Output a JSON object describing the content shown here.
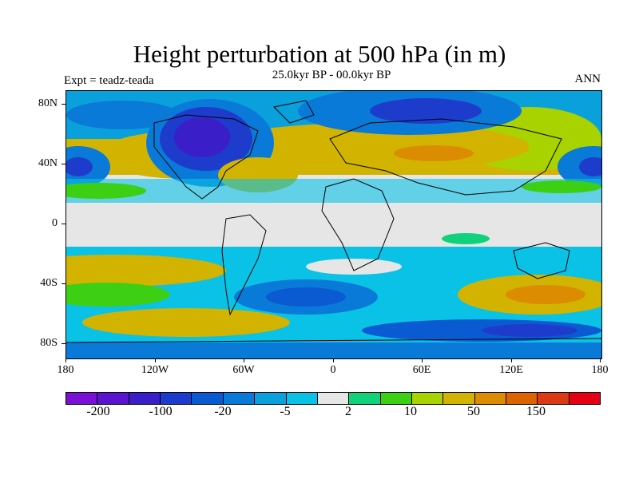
{
  "title": "Height perturbation at 500 hPa (in m)",
  "subtitle": "25.0kyr BP - 00.0kyr BP",
  "experiment": "Expt = teadz-teada",
  "season": "ANN",
  "map": {
    "projection": "cylindrical-equidistant",
    "lon_range": [
      -180,
      180
    ],
    "lat_range": [
      -90,
      90
    ],
    "x_tick_labels": [
      "180",
      "120W",
      "60W",
      "0",
      "60E",
      "120E",
      "180"
    ],
    "y_tick_labels": [
      "80N",
      "40N",
      "0",
      "40S",
      "80S"
    ],
    "coastline_color": "#000000",
    "background_color": "#e6e6e6"
  },
  "colorbar": {
    "colors": [
      "#7a0fd6",
      "#5a14d0",
      "#3a1ec8",
      "#1e3ccc",
      "#0a5ad2",
      "#0a7ad8",
      "#0aa0dc",
      "#0ac2e6",
      "#e6e6e6",
      "#10d27a",
      "#3ccf14",
      "#a8d200",
      "#d2b400",
      "#dc8c00",
      "#dc6400",
      "#dc3a14",
      "#e60014"
    ],
    "labels": [
      "-200",
      "-100",
      "-20",
      "-5",
      "2",
      "10",
      "50",
      "150"
    ]
  },
  "features": {
    "north_america_negative": "center deep negative height anomaly over Canada",
    "color_scale_name": "height perturbation levels (m)"
  }
}
